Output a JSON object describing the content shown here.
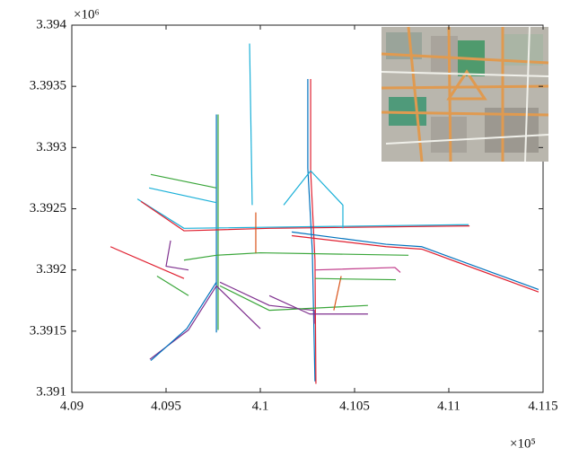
{
  "chart_data": {
    "type": "line",
    "x_exponent_label": "×10⁵",
    "y_exponent_label": "×10⁶",
    "xlim": [
      4.09,
      4.115
    ],
    "ylim": [
      3.391,
      3.394
    ],
    "xticks": [
      4.09,
      4.095,
      4.1,
      4.105,
      4.11,
      4.115
    ],
    "yticks": [
      3.391,
      3.3915,
      3.392,
      3.3925,
      3.393,
      3.3935,
      3.394
    ],
    "grid": false,
    "series": [
      {
        "color": "#0072bd",
        "x": [
          4.09767,
          4.09767
        ],
        "values": [
          3.39327,
          3.39149
        ]
      },
      {
        "color": "#3aa63a",
        "x": [
          4.09776,
          4.09776
        ],
        "values": [
          3.39327,
          3.39151
        ]
      },
      {
        "color": "#1ab0d8",
        "x": [
          4.09348,
          4.09595,
          4.11105
        ],
        "values": [
          3.39258,
          3.39234,
          3.39237
        ]
      },
      {
        "color": "#e02030",
        "x": [
          4.09367,
          4.09595,
          4.10048,
          4.1111
        ],
        "values": [
          3.39256,
          3.39232,
          3.39234,
          3.39236
        ]
      },
      {
        "color": "#0072bd",
        "x": [
          4.10252,
          4.10252,
          4.10276,
          4.1029
        ],
        "values": [
          3.39356,
          3.39283,
          3.39215,
          3.39109
        ]
      },
      {
        "color": "#e02030",
        "x": [
          4.10267,
          4.10267,
          4.1029,
          4.10295
        ],
        "values": [
          3.39356,
          3.39281,
          3.39208,
          3.39107
        ]
      },
      {
        "color": "#1ab0d8",
        "x": [
          4.10124,
          4.10267,
          4.10438,
          4.10438
        ],
        "values": [
          3.39253,
          3.39281,
          3.39253,
          3.39234
        ]
      },
      {
        "color": "#0072bd",
        "x": [
          4.10167,
          4.10667,
          4.10857,
          4.11476
        ],
        "values": [
          3.39231,
          3.39221,
          3.39219,
          3.39184
        ]
      },
      {
        "color": "#e02030",
        "x": [
          4.10167,
          4.10667,
          4.10857,
          4.11476
        ],
        "values": [
          3.39228,
          3.39219,
          3.39217,
          3.39182
        ]
      },
      {
        "color": "#7e2f8e",
        "x": [
          4.09414,
          4.09619,
          4.09767,
          4.1
        ],
        "values": [
          3.39127,
          3.39151,
          3.39187,
          3.39152
        ]
      },
      {
        "color": "#0072bd",
        "x": [
          4.09419,
          4.0961,
          4.09767
        ],
        "values": [
          3.39126,
          3.39152,
          3.3919
        ]
      },
      {
        "color": "#3aa63a",
        "x": [
          4.09595,
          4.09767,
          4.1,
          4.10786
        ],
        "values": [
          3.39208,
          3.39212,
          3.39214,
          3.39212
        ]
      },
      {
        "color": "#3aa63a",
        "x": [
          4.09419,
          4.09767
        ],
        "values": [
          3.39278,
          3.39267
        ]
      },
      {
        "color": "#1ab0d8",
        "x": [
          4.0941,
          4.09767
        ],
        "values": [
          3.39267,
          3.39255
        ]
      },
      {
        "color": "#d95319",
        "x": [
          4.09976,
          4.09976
        ],
        "values": [
          3.39247,
          3.39214
        ]
      },
      {
        "color": "#7e2f8e",
        "x": [
          4.09786,
          4.10048,
          4.10286,
          4.10286
        ],
        "values": [
          3.3919,
          3.39171,
          3.39167,
          3.39156
        ]
      },
      {
        "color": "#3aa63a",
        "x": [
          4.09786,
          4.10048,
          4.10571
        ],
        "values": [
          3.39187,
          3.39167,
          3.39171
        ]
      },
      {
        "color": "#e02030",
        "x": [
          4.09205,
          4.09595
        ],
        "values": [
          3.39219,
          3.39193
        ]
      },
      {
        "color": "#1ab0d8",
        "x": [
          4.09943,
          4.09957
        ],
        "values": [
          3.39385,
          3.39253
        ]
      },
      {
        "color": "#7e2f8e",
        "x": [
          4.10048,
          4.10262,
          4.10571
        ],
        "values": [
          3.39179,
          3.39164,
          3.39164
        ]
      },
      {
        "color": "#7e2f8e",
        "x": [
          4.09524,
          4.095,
          4.09619
        ],
        "values": [
          3.39224,
          3.39203,
          3.392
        ]
      },
      {
        "color": "#d95319",
        "x": [
          4.10429,
          4.1039
        ],
        "values": [
          3.39195,
          3.39167
        ]
      },
      {
        "color": "#c03a8a",
        "x": [
          4.1029,
          4.10714,
          4.10743
        ],
        "values": [
          3.392,
          3.39202,
          3.39198
        ]
      },
      {
        "color": "#3aa63a",
        "x": [
          4.1029,
          4.10719
        ],
        "values": [
          3.39193,
          3.39192
        ]
      },
      {
        "color": "#3aa63a",
        "x": [
          4.09452,
          4.09619
        ],
        "values": [
          3.39195,
          3.39179
        ]
      }
    ]
  }
}
